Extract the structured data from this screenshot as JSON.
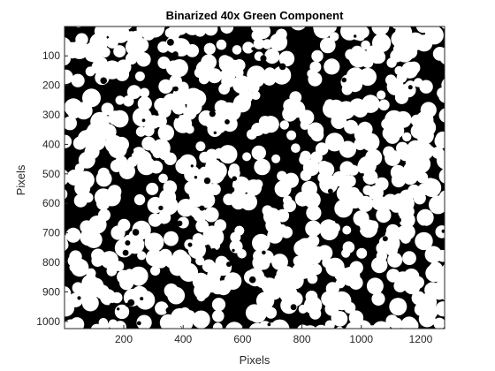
{
  "title": "Binarized 40x Green Component",
  "xlabel": "Pixels",
  "ylabel": "Pixels",
  "xticks": [
    "200",
    "400",
    "600",
    "800",
    "1000",
    "1200"
  ],
  "yticks": [
    "100",
    "200",
    "300",
    "400",
    "500",
    "600",
    "700",
    "800",
    "900",
    "1000"
  ],
  "colors": {
    "background": "#000000",
    "foreground": "#ffffff",
    "axis": "#262626"
  }
}
